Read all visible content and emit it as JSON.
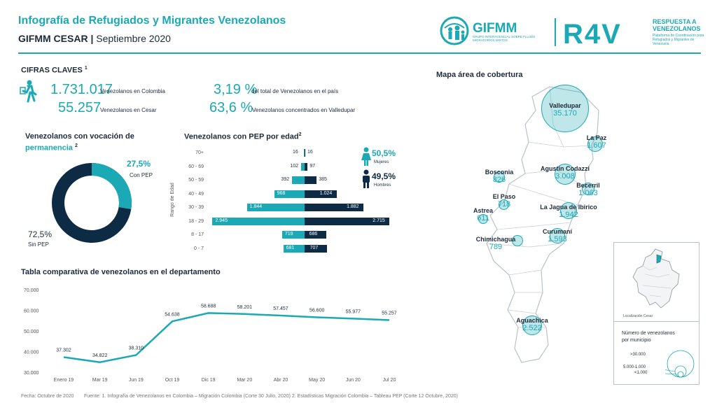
{
  "header": {
    "title": "Infografía de Refugiados y Migrantes Venezolanos",
    "region": "GIFMM CESAR",
    "period": "Septiembre 2020",
    "gifmm_logo": "GIFMM",
    "gifmm_tagline": "GRUPO INTERAGENCIAL SOBRE FLUJOS MIGRATORIOS MIXTOS",
    "r4v_logo": "R4V",
    "r4v_title": "RESPUESTA A VENEZOLANOS",
    "r4v_tagline": "Plataforma de Coordinación para Refugiados y Migrantes de Venezuela"
  },
  "key_figures": {
    "title": "CIFRAS CLAVES",
    "footnote": "1",
    "icon": "migrant-walking-icon",
    "items": [
      {
        "value": "1.731.017",
        "label": "Venezolanos en Colombia"
      },
      {
        "value": "55.257",
        "label": "Venezolanos en Cesar"
      },
      {
        "value": "3,19 %",
        "label": "del total de Venezolanos en el país"
      },
      {
        "value": "63,6 %",
        "label": "Venezolanos concentrados en Valledupar"
      }
    ]
  },
  "permanence": {
    "title_line1": "Venezolanos con vocación de",
    "title_line2": "permanencia",
    "footnote": "2",
    "pep_pct": "27,5%",
    "pep_label": "Con PEP",
    "nopep_pct": "72,5%",
    "nopep_label": "Sin PEP",
    "pep_fraction": 0.275,
    "colors": {
      "pep": "#1aa9b5",
      "nopep": "#0d2b45"
    }
  },
  "pyramid": {
    "title": "Venezolanos con PEP por edad",
    "footnote": "2",
    "axis_label": "Rango de Edad",
    "women_pct": "50,5%",
    "women_label": "Mujeres",
    "men_pct": "49,5%",
    "men_label": "Hombres",
    "rows": [
      {
        "age": "70+",
        "f": "16",
        "m": "16",
        "fv": 16,
        "mv": 16
      },
      {
        "age": "60 - 69",
        "f": "102",
        "m": "97",
        "fv": 102,
        "mv": 97
      },
      {
        "age": "50 - 59",
        "f": "392",
        "m": "385",
        "fv": 392,
        "mv": 385
      },
      {
        "age": "40 - 49",
        "f": "968",
        "m": "1.024",
        "fv": 968,
        "mv": 1024
      },
      {
        "age": "30 - 39",
        "f": "1.844",
        "m": "1.882",
        "fv": 1844,
        "mv": 1882
      },
      {
        "age": "18 - 29",
        "f": "2.945",
        "m": "2.715",
        "fv": 2945,
        "mv": 2715
      },
      {
        "age": "8 - 17",
        "f": "719",
        "m": "686",
        "fv": 719,
        "mv": 686
      },
      {
        "age": "0 - 7",
        "f": "681",
        "m": "707",
        "fv": 681,
        "mv": 707
      }
    ]
  },
  "chart_data": {
    "type": "line",
    "title": "Tabla comparativa de venezolanos en el departamento",
    "categories": [
      "Enero 19",
      "Mar 19",
      "Jun 19",
      "Oct 19",
      "Dic 19",
      "Mar 20",
      "Abr 20",
      "May 20",
      "Jun 20",
      "Jul 20"
    ],
    "values": [
      37302,
      34822,
      38310,
      54638,
      58688,
      58201,
      57457,
      56600,
      55977,
      55257
    ],
    "value_labels": [
      "37.302",
      "34.822",
      "38.310",
      "54.638",
      "58.688",
      "58.201",
      "57.457",
      "56.600",
      "55.977",
      "55.257"
    ],
    "yticks": [
      "70.000",
      "60.000",
      "50.000",
      "40.000",
      "30.000"
    ],
    "ytick_values": [
      70000,
      60000,
      50000,
      40000,
      30000
    ],
    "ylim": [
      30000,
      70000
    ],
    "grid": false,
    "color": "#1aa9b5"
  },
  "map": {
    "title": "Mapa área de cobertura",
    "cities": [
      {
        "name": "Valledupar",
        "value": "35.170",
        "n": 35170
      },
      {
        "name": "La Paz",
        "value": "1.607",
        "n": 1607
      },
      {
        "name": "Bosconia",
        "value": "826",
        "n": 826
      },
      {
        "name": "Agustín Codazzi",
        "value": "3.008",
        "n": 3008
      },
      {
        "name": "Becerril",
        "value": "1.063",
        "n": 1063
      },
      {
        "name": "El Paso",
        "value": "718",
        "n": 718
      },
      {
        "name": "La Jagua de Ibirico",
        "value": "1.942",
        "n": 1942
      },
      {
        "name": "Astrea",
        "value": "611",
        "n": 611
      },
      {
        "name": "Curumaní",
        "value": "1.593",
        "n": 1593
      },
      {
        "name": "Chimichagua",
        "value": "789",
        "n": 789
      },
      {
        "name": "Aguachica",
        "value": "2.522",
        "n": 2522
      }
    ],
    "inset_label": "Localización Cesar",
    "legend_title_1": "Número de venezolanos",
    "legend_title_2": "por municipio",
    "legend_big": ">30.000",
    "legend_mid": "5.000-1.000",
    "legend_small": "<1.000"
  },
  "footer": {
    "date": "Fecha: Octubre de 2020",
    "sources": "Fuente: 1. Infografía de Venezolanos en Colombia – Migración Colombia (Corte 30 Julio, 2020)   2. Estadísticas Migración Colombia – Tableau PEP (Corte 12 Octubre, 2020)"
  }
}
